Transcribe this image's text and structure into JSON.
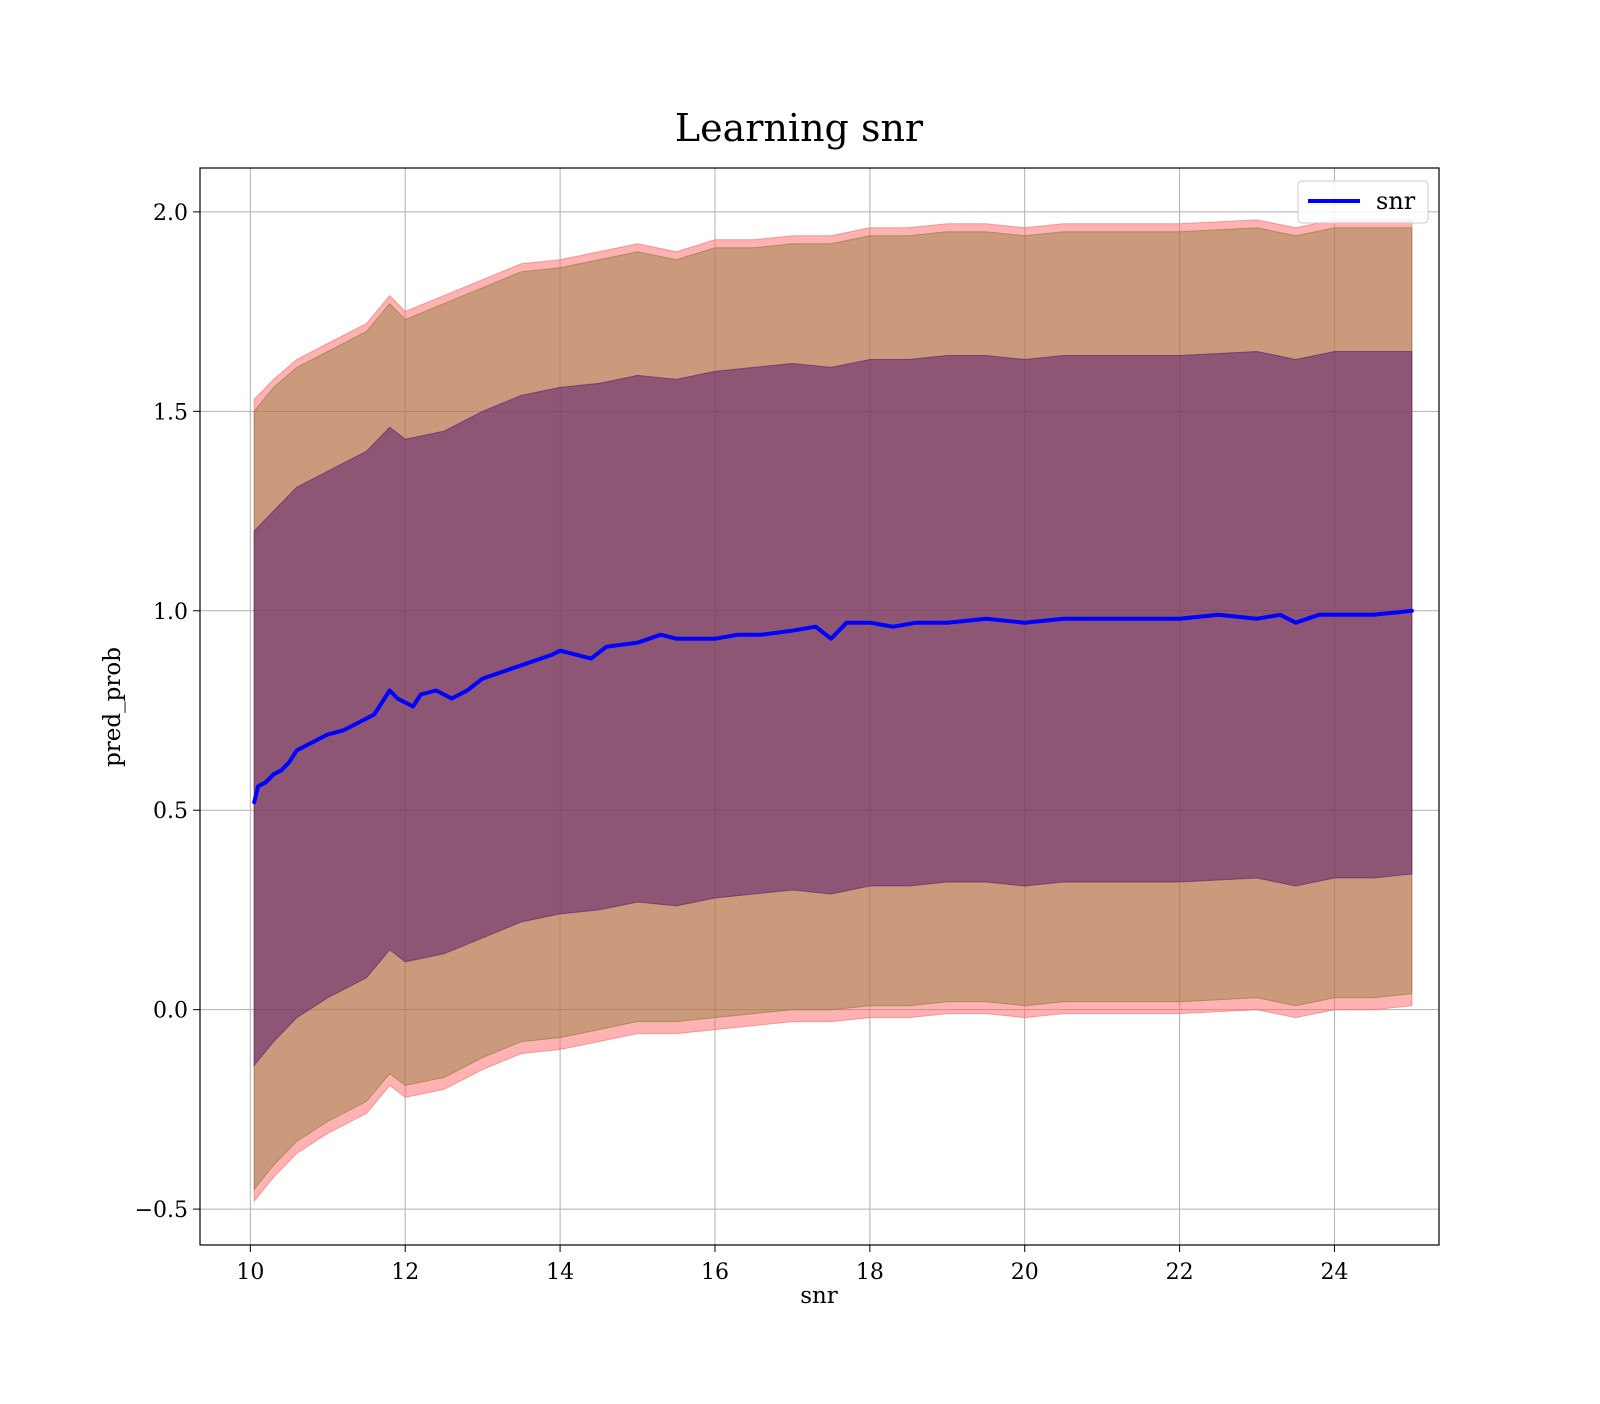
{
  "chart_data": {
    "type": "line",
    "title": "Learning snr",
    "xlabel": "snr",
    "ylabel": "pred_prob",
    "xlim": [
      9.35,
      25.35
    ],
    "ylim": [
      -0.59,
      2.11
    ],
    "xticks": [
      10,
      12,
      14,
      16,
      18,
      20,
      22,
      24
    ],
    "yticks": [
      -0.5,
      0.0,
      0.5,
      1.0,
      1.5,
      2.0
    ],
    "xtick_labels": [
      "10",
      "12",
      "14",
      "16",
      "18",
      "20",
      "22",
      "24"
    ],
    "ytick_labels": [
      "−0.5",
      "0.0",
      "0.5",
      "1.0",
      "1.5",
      "2.0"
    ],
    "grid": true,
    "legend_position": "top-right",
    "series": [
      {
        "name": "snr",
        "color": "#0000ff",
        "x": [
          10.05,
          10.1,
          10.2,
          10.3,
          10.4,
          10.5,
          10.6,
          10.7,
          10.8,
          10.9,
          11.0,
          11.2,
          11.4,
          11.6,
          11.8,
          11.9,
          12.0,
          12.1,
          12.2,
          12.4,
          12.6,
          12.8,
          13.0,
          13.3,
          13.6,
          13.9,
          14.0,
          14.2,
          14.4,
          14.6,
          15.0,
          15.3,
          15.5,
          15.7,
          16.0,
          16.3,
          16.6,
          17.0,
          17.3,
          17.5,
          17.7,
          18.0,
          18.3,
          18.6,
          19.0,
          19.5,
          20.0,
          20.5,
          21.0,
          21.5,
          22.0,
          22.5,
          23.0,
          23.3,
          23.5,
          23.8,
          24.0,
          24.5,
          25.0
        ],
        "values": [
          0.52,
          0.56,
          0.57,
          0.59,
          0.6,
          0.62,
          0.65,
          0.66,
          0.67,
          0.68,
          0.69,
          0.7,
          0.72,
          0.74,
          0.8,
          0.78,
          0.77,
          0.76,
          0.79,
          0.8,
          0.78,
          0.8,
          0.83,
          0.85,
          0.87,
          0.89,
          0.9,
          0.89,
          0.88,
          0.91,
          0.92,
          0.94,
          0.93,
          0.93,
          0.93,
          0.94,
          0.94,
          0.95,
          0.96,
          0.93,
          0.97,
          0.97,
          0.96,
          0.97,
          0.97,
          0.98,
          0.97,
          0.98,
          0.98,
          0.98,
          0.98,
          0.99,
          0.98,
          0.99,
          0.97,
          0.99,
          0.99,
          0.99,
          1.0
        ]
      }
    ],
    "bands": [
      {
        "color": "#ff6666",
        "opacity": 0.5,
        "x": [
          10.05,
          10.3,
          10.6,
          11.0,
          11.5,
          11.8,
          12.0,
          12.5,
          13.0,
          13.5,
          14.0,
          14.5,
          15.0,
          15.5,
          16.0,
          16.5,
          17.0,
          17.5,
          18.0,
          18.5,
          19.0,
          19.5,
          20.0,
          20.5,
          21.0,
          22.0,
          23.0,
          23.5,
          24.0,
          24.5,
          25.0
        ],
        "upper": [
          1.53,
          1.58,
          1.63,
          1.67,
          1.72,
          1.79,
          1.75,
          1.79,
          1.83,
          1.87,
          1.88,
          1.9,
          1.92,
          1.9,
          1.93,
          1.93,
          1.94,
          1.94,
          1.96,
          1.96,
          1.97,
          1.97,
          1.96,
          1.97,
          1.97,
          1.97,
          1.98,
          1.96,
          1.98,
          1.98,
          1.98
        ],
        "lower": [
          -0.48,
          -0.42,
          -0.36,
          -0.31,
          -0.26,
          -0.19,
          -0.22,
          -0.2,
          -0.15,
          -0.11,
          -0.1,
          -0.08,
          -0.06,
          -0.06,
          -0.05,
          -0.04,
          -0.03,
          -0.03,
          -0.02,
          -0.02,
          -0.01,
          -0.01,
          -0.02,
          -0.01,
          -0.01,
          -0.01,
          0.0,
          -0.02,
          0.0,
          0.0,
          0.01
        ]
      },
      {
        "color": "#8c7a3a",
        "opacity": 0.45,
        "x": [
          10.05,
          10.3,
          10.6,
          11.0,
          11.5,
          11.8,
          12.0,
          12.5,
          13.0,
          13.5,
          14.0,
          14.5,
          15.0,
          15.5,
          16.0,
          16.5,
          17.0,
          17.5,
          18.0,
          18.5,
          19.0,
          19.5,
          20.0,
          20.5,
          21.0,
          22.0,
          23.0,
          23.5,
          24.0,
          24.5,
          25.0
        ],
        "upper": [
          1.5,
          1.56,
          1.61,
          1.65,
          1.7,
          1.77,
          1.73,
          1.77,
          1.81,
          1.85,
          1.86,
          1.88,
          1.9,
          1.88,
          1.91,
          1.91,
          1.92,
          1.92,
          1.94,
          1.94,
          1.95,
          1.95,
          1.94,
          1.95,
          1.95,
          1.95,
          1.96,
          1.94,
          1.96,
          1.96,
          1.96
        ],
        "lower": [
          -0.45,
          -0.39,
          -0.33,
          -0.28,
          -0.23,
          -0.16,
          -0.19,
          -0.17,
          -0.12,
          -0.08,
          -0.07,
          -0.05,
          -0.03,
          -0.03,
          -0.02,
          -0.01,
          0.0,
          0.0,
          0.01,
          0.01,
          0.02,
          0.02,
          0.01,
          0.02,
          0.02,
          0.02,
          0.03,
          0.01,
          0.03,
          0.03,
          0.04
        ]
      },
      {
        "color": "#5a1f6e",
        "opacity": 0.55,
        "x": [
          10.05,
          10.3,
          10.6,
          11.0,
          11.5,
          11.8,
          12.0,
          12.5,
          13.0,
          13.5,
          14.0,
          14.5,
          15.0,
          15.5,
          16.0,
          16.5,
          17.0,
          17.5,
          18.0,
          18.5,
          19.0,
          19.5,
          20.0,
          20.5,
          21.0,
          22.0,
          23.0,
          23.5,
          24.0,
          24.5,
          25.0
        ],
        "upper": [
          1.2,
          1.25,
          1.31,
          1.35,
          1.4,
          1.46,
          1.43,
          1.45,
          1.5,
          1.54,
          1.56,
          1.57,
          1.59,
          1.58,
          1.6,
          1.61,
          1.62,
          1.61,
          1.63,
          1.63,
          1.64,
          1.64,
          1.63,
          1.64,
          1.64,
          1.64,
          1.65,
          1.63,
          1.65,
          1.65,
          1.65
        ],
        "lower": [
          -0.14,
          -0.08,
          -0.02,
          0.03,
          0.08,
          0.15,
          0.12,
          0.14,
          0.18,
          0.22,
          0.24,
          0.25,
          0.27,
          0.26,
          0.28,
          0.29,
          0.3,
          0.29,
          0.31,
          0.31,
          0.32,
          0.32,
          0.31,
          0.32,
          0.32,
          0.32,
          0.33,
          0.31,
          0.33,
          0.33,
          0.34
        ]
      }
    ]
  }
}
